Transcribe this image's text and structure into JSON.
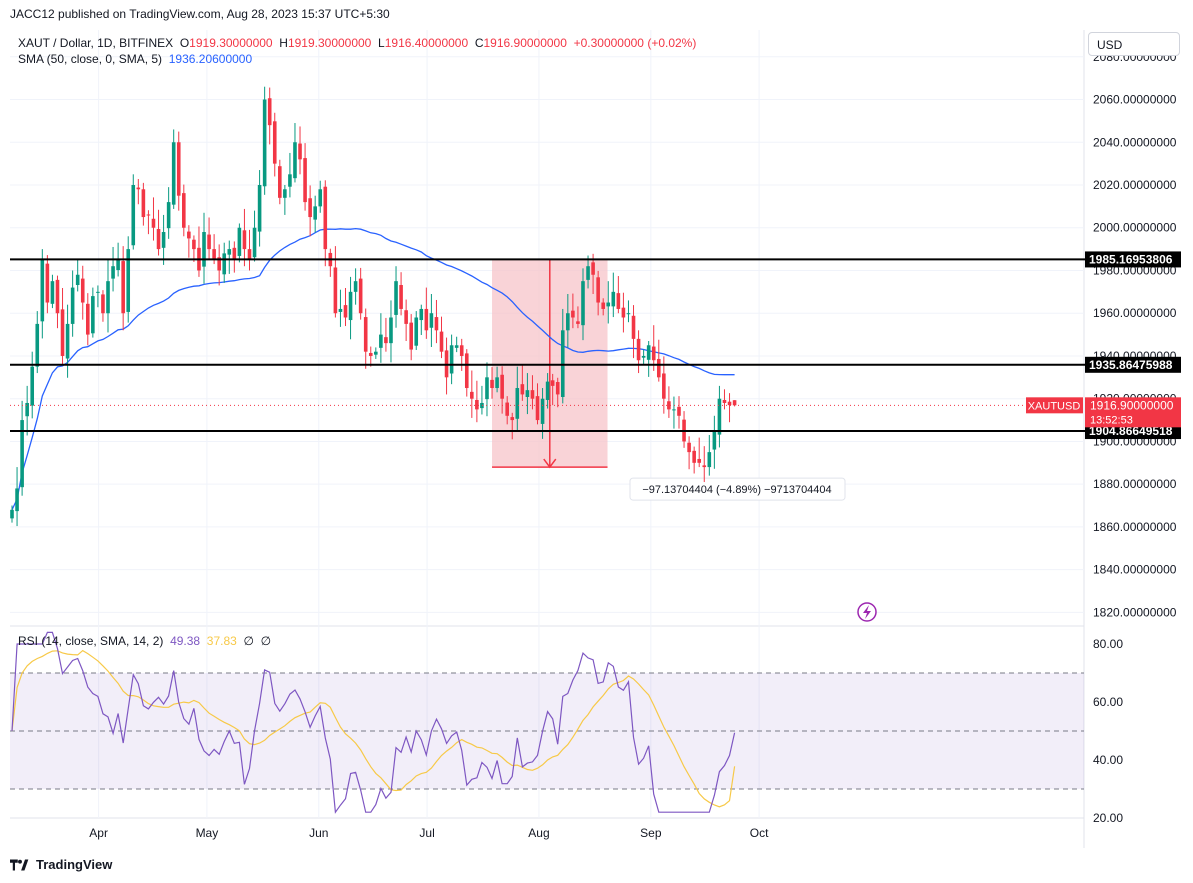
{
  "header": {
    "published": "JACC12 published on TradingView.com, Aug 28, 2023 15:37 UTC+5:30"
  },
  "legend": {
    "symbol": "XAUT / Dollar, 1D, BITFINEX",
    "open_label": "O",
    "open": "1919.30000000",
    "high_label": "H",
    "high": "1919.30000000",
    "low_label": "L",
    "low": "1916.40000000",
    "close_label": "C",
    "close": "1916.90000000",
    "change": "+0.30000000 (+0.02%)",
    "sma_label": "SMA (50, close, 0, SMA, 5)",
    "sma_value": "1936.20600000",
    "rsi_label": "RSI (14, close, SMA, 14, 2)",
    "rsi_value": "49.38",
    "rsi_ma_value": "37.83",
    "rsi_extra1": "∅",
    "rsi_extra2": "∅"
  },
  "currency_button": "USD",
  "footer": {
    "brand": "TradingView"
  },
  "colors": {
    "up": "#089981",
    "down": "#f23645",
    "sma": "#2962ff",
    "rsi": "#7e57c2",
    "rsi_ma": "#f7c948",
    "range_fill": "#f7c1c6",
    "level_line": "#000000"
  },
  "chart_data": [
    {
      "type": "candlestick",
      "title": "XAUT / Dollar, 1D, BITFINEX",
      "x_ticks": [
        "Apr",
        "May",
        "Jun",
        "Jul",
        "Aug",
        "Sep",
        "Oct"
      ],
      "y_ticks": [
        "1820.00000000",
        "1840.00000000",
        "1860.00000000",
        "1880.00000000",
        "1900.00000000",
        "1920.00000000",
        "1940.00000000",
        "1960.00000000",
        "1980.00000000",
        "2000.00000000",
        "2020.00000000",
        "2040.00000000",
        "2060.00000000",
        "2080.00000000"
      ],
      "y_tick_values": [
        1820,
        1840,
        1860,
        1880,
        1900,
        1920,
        1940,
        1960,
        1980,
        2000,
        2020,
        2040,
        2060,
        2080
      ],
      "ylim": [
        1810,
        2085
      ],
      "date_range": [
        "2023-03-08",
        "2023-10-10"
      ],
      "close": [
        1868,
        1878,
        1910,
        1918,
        1935,
        1955,
        1985,
        1965,
        1975,
        1960,
        1940,
        1955,
        1972,
        1978,
        1965,
        1950,
        1968,
        1970,
        1960,
        1975,
        1982,
        1985,
        1960,
        1990,
        2020,
        2018,
        2005,
        2006,
        2000,
        1990,
        1998,
        2012,
        2040,
        2015,
        2000,
        1995,
        1990,
        1980,
        1998,
        1990,
        1985,
        1980,
        1988,
        1990,
        1985,
        2000,
        1990,
        1985,
        2000,
        2020,
        2060,
        2048,
        2030,
        2014,
        2018,
        2025,
        2040,
        2032,
        2012,
        2005,
        2010,
        2018,
        1990,
        1982,
        1960,
        1962,
        1958,
        1970,
        1975,
        1960,
        1942,
        1940,
        1942,
        1950,
        1946,
        1958,
        1975,
        1962,
        1955,
        1943,
        1958,
        1962,
        1952,
        1960,
        1952,
        1942,
        1930,
        1945,
        1945,
        1940,
        1925,
        1920,
        1915,
        1918,
        1930,
        1925,
        1930,
        1920,
        1912,
        1910,
        1925,
        1922,
        1924,
        1920,
        1910,
        1920,
        1928,
        1926,
        1922,
        1952,
        1960,
        1958,
        1955,
        1975,
        1982,
        1978,
        1965,
        1962,
        1965,
        1970,
        1962,
        1958,
        1960,
        1948,
        1938,
        1940,
        1945,
        1938,
        1930,
        1920,
        1915,
        1915,
        1912,
        1900,
        1895,
        1890,
        1890,
        1888,
        1895,
        1905,
        1920,
        1918,
        1917,
        1916.9
      ],
      "series": [
        {
          "name": "SMA (50, close, 0, SMA, 5)",
          "value_label": "1936.20600000"
        }
      ],
      "levels": [
        {
          "value": 1985.16953806,
          "label": "1985.16953806"
        },
        {
          "value": 1935.86475988,
          "label": "1935.86475988"
        },
        {
          "value": 1904.86649518,
          "label": "1904.86649518"
        }
      ],
      "last_price": {
        "symbol": "XAUTUSD",
        "value": 1916.9,
        "label": "1916.90000000",
        "countdown": "13:52:53"
      },
      "measure": {
        "from": 1985.2,
        "to": 1888.0,
        "date_from": "2023-07-19",
        "date_to": "2023-08-20",
        "label": "−97.13704404 (−4.89%) −9713704404"
      }
    },
    {
      "type": "line",
      "title": "RSI (14, close, SMA, 14, 2)",
      "y_ticks": [
        "20.00",
        "40.00",
        "60.00",
        "80.00"
      ],
      "y_tick_values": [
        20,
        40,
        60,
        80
      ],
      "ylim": [
        20,
        85
      ],
      "bands": [
        70,
        50,
        30
      ],
      "series": [
        {
          "name": "RSI",
          "value_label": "49.38"
        },
        {
          "name": "RSI MA",
          "value_label": "37.83"
        }
      ]
    }
  ]
}
